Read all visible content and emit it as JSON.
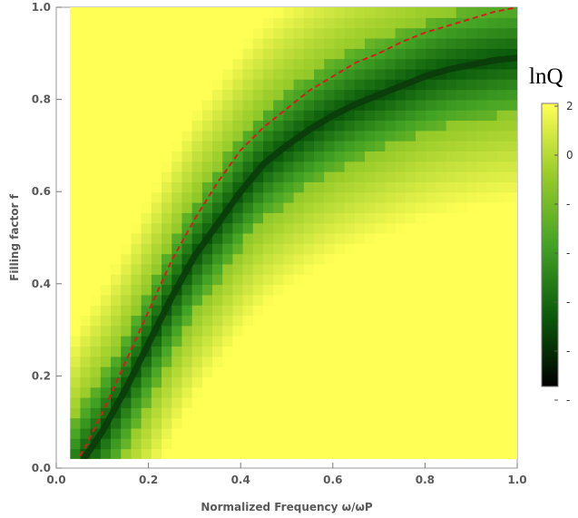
{
  "chart_data": {
    "type": "heatmap",
    "xlabel": "Normalized Frequency ω/ωP",
    "ylabel": "Filling factor f",
    "xlim": [
      0.0,
      1.0
    ],
    "ylim": [
      0.0,
      1.0
    ],
    "x_ticks": [
      "0.0",
      "0.2",
      "0.4",
      "0.6",
      "0.8",
      "1.0"
    ],
    "y_ticks": [
      "0.0",
      "0.2",
      "0.4",
      "0.6",
      "0.8",
      "1.0"
    ],
    "grid": false,
    "data_extent": {
      "x": [
        0.03,
        1.0
      ],
      "y": [
        0.02,
        1.0
      ]
    },
    "colorbar": {
      "title": "lnQ",
      "tick_labels": [
        "2",
        "0",
        "-",
        "-",
        "-",
        "-",
        "-"
      ],
      "colors": [
        "#000000",
        "#0b5a0b",
        "#43a324",
        "#9acc2a",
        "#ffff55"
      ]
    },
    "resonance_minimum_curve": {
      "description": "dark band of minimum lnQ",
      "x": [
        0.06,
        0.1,
        0.15,
        0.2,
        0.25,
        0.3,
        0.35,
        0.4,
        0.45,
        0.5,
        0.55,
        0.6,
        0.65,
        0.7,
        0.75,
        0.8,
        0.85,
        0.9,
        0.95,
        1.0
      ],
      "y": [
        0.02,
        0.08,
        0.17,
        0.27,
        0.37,
        0.46,
        0.53,
        0.6,
        0.66,
        0.7,
        0.735,
        0.765,
        0.79,
        0.81,
        0.83,
        0.85,
        0.865,
        0.875,
        0.885,
        0.89
      ]
    },
    "series": [
      {
        "type": "dashed-line",
        "color": "#dd1a1a",
        "x": [
          0.04,
          0.06,
          0.1,
          0.15,
          0.2,
          0.25,
          0.3,
          0.35,
          0.4,
          0.45,
          0.5,
          0.55,
          0.6,
          0.65,
          0.7,
          0.75,
          0.8,
          0.85,
          0.9,
          0.95,
          1.0
        ],
        "y": [
          0.01,
          0.04,
          0.12,
          0.23,
          0.34,
          0.45,
          0.54,
          0.62,
          0.69,
          0.74,
          0.78,
          0.82,
          0.85,
          0.88,
          0.9,
          0.925,
          0.945,
          0.96,
          0.975,
          0.99,
          1.0
        ]
      }
    ]
  }
}
